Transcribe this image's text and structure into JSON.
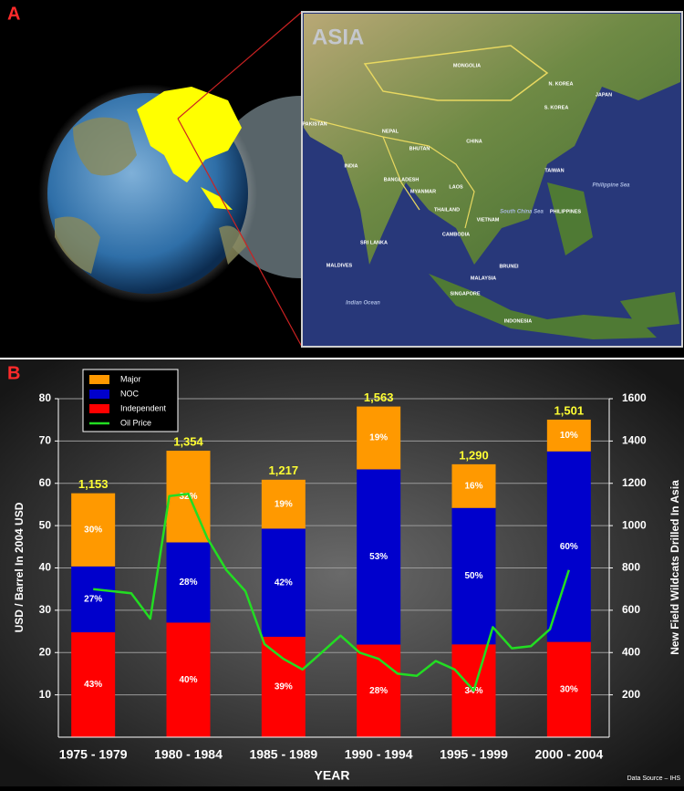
{
  "panel_a": {
    "label": "A",
    "map_title": "ASIA",
    "places": [
      "MONGOLIA",
      "N. KOREA",
      "JAPAN",
      "S. KOREA",
      "CHINA",
      "PAKISTAN",
      "NEPAL",
      "BHUTAN",
      "INDIA",
      "BANGLADESH",
      "MYANMAR",
      "LAOS",
      "TAIWAN",
      "Philippine Sea",
      "THAILAND",
      "VIETNAM",
      "South China Sea",
      "PHILIPPINES",
      "CAMBODIA",
      "SRI LANKA",
      "MALDIVES",
      "BRUNEI",
      "MALAYSIA",
      "SINGAPORE",
      "Indian Ocean",
      "INDONESIA"
    ]
  },
  "panel_b_label": "B",
  "source": "Data Source – IHS",
  "chart_data": {
    "type": "bar",
    "stacked": true,
    "xlabel": "YEAR",
    "ylabel": "USD / Barrel In 2004 USD",
    "y2label": "New Field Wildcats Drilled In Asia",
    "categories": [
      "1975 - 1979",
      "1980 - 1984",
      "1985 - 1989",
      "1990 - 1994",
      "1995 - 1999",
      "2000 - 2004"
    ],
    "series": [
      {
        "name": "Major",
        "color": "#ff9900",
        "axis": "y2",
        "values": [
          30,
          32,
          19,
          19,
          16,
          10
        ],
        "value_labels": [
          "30%",
          "32%",
          "19%",
          "19%",
          "16%",
          "10%"
        ]
      },
      {
        "name": "NOC",
        "color": "#0000cc",
        "axis": "y2",
        "values": [
          27,
          28,
          42,
          53,
          50,
          60
        ],
        "value_labels": [
          "27%",
          "28%",
          "42%",
          "53%",
          "50%",
          "60%"
        ]
      },
      {
        "name": "Independent",
        "color": "#ff0000",
        "axis": "y2",
        "values": [
          43,
          40,
          39,
          28,
          34,
          30
        ],
        "value_labels": [
          "43%",
          "40%",
          "39%",
          "28%",
          "34%",
          "30%"
        ]
      }
    ],
    "totals": {
      "values": [
        1153,
        1354,
        1217,
        1563,
        1290,
        1501
      ],
      "value_labels": [
        "1,153",
        "1,354",
        "1,217",
        "1,563",
        "1,290",
        "1,501"
      ],
      "color": "#ffff33"
    },
    "line_series": {
      "name": "Oil Price",
      "color": "#22dd22",
      "axis": "y",
      "x": [
        1977,
        1978,
        1979,
        1980,
        1981,
        1982,
        1983,
        1984,
        1985,
        1986,
        1987,
        1988,
        1989,
        1990,
        1991,
        1992,
        1993,
        1994,
        1995,
        1996,
        1997,
        1998,
        1999,
        2000,
        2001,
        2002
      ],
      "values": [
        35,
        34.5,
        34,
        28,
        57,
        57.5,
        47,
        39.5,
        34.5,
        22,
        18.5,
        16,
        20,
        24,
        20,
        18.5,
        15,
        14.5,
        18,
        16,
        11,
        26,
        21,
        21.5,
        25.5,
        39.5
      ]
    },
    "ylim": [
      0,
      80
    ],
    "yticks": [
      10,
      20,
      30,
      40,
      50,
      60,
      70,
      80
    ],
    "y2lim": [
      0,
      1600
    ],
    "y2ticks": [
      200,
      400,
      600,
      800,
      1000,
      1200,
      1400,
      1600
    ],
    "grid": true
  }
}
